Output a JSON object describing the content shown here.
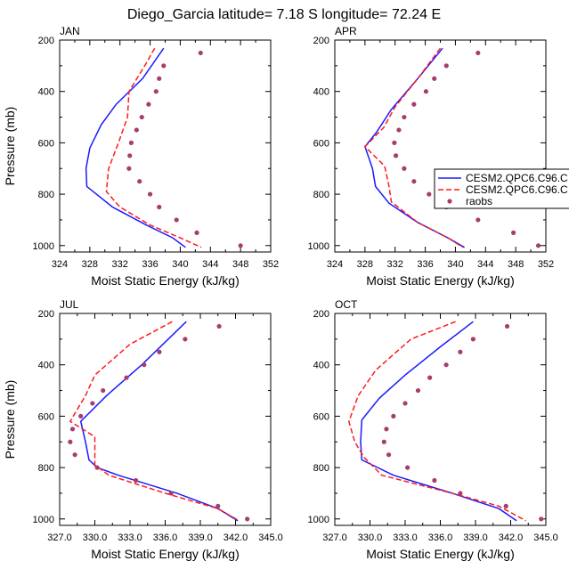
{
  "title": "Diego_Garcia  latitude= 7.18 S longitude= 72.24 E",
  "colors": {
    "series1": "#1a1aff",
    "series2": "#ff1a1a",
    "series3": "#a63d6d"
  },
  "legend": {
    "entries": [
      "CESM2.QPC6.C96.C",
      "CESM2.QPC6.C96.C",
      "raobs"
    ]
  },
  "chart_data": [
    {
      "type": "line",
      "panel": "JAN",
      "xlabel": "Moist Static Energy (kJ/kg)",
      "ylabel": "Pressure (mb)",
      "xlim": [
        324,
        352
      ],
      "ylim": [
        1025,
        200
      ],
      "xticks": [
        324,
        328,
        332,
        336,
        340,
        344,
        348,
        352
      ],
      "xtick_labels": [
        "324",
        "328",
        "332",
        "336",
        "340",
        "344",
        "348",
        "352"
      ],
      "yticks": [
        200,
        400,
        600,
        800,
        1000
      ],
      "ytick_labels": [
        "200",
        "400",
        "600",
        "800",
        "1000"
      ],
      "series": [
        {
          "name": "CESM2.QPC6.C96.C",
          "style": "solid",
          "points": [
            [
              337.8,
              232
            ],
            [
              335,
              350
            ],
            [
              331.5,
              450
            ],
            [
              329.5,
              530
            ],
            [
              328,
              620
            ],
            [
              327.5,
              700
            ],
            [
              327.6,
              770
            ],
            [
              331,
              850
            ],
            [
              335.5,
              920
            ],
            [
              339,
              970
            ],
            [
              340.7,
              1007
            ]
          ]
        },
        {
          "name": "CESM2.QPC6.C96.C",
          "style": "dashed",
          "points": [
            [
              336.6,
              232
            ],
            [
              335.3,
              300
            ],
            [
              333.2,
              400
            ],
            [
              333,
              500
            ],
            [
              331.8,
              600
            ],
            [
              330.5,
              700
            ],
            [
              330.2,
              790
            ],
            [
              332,
              850
            ],
            [
              336,
              920
            ],
            [
              340,
              970
            ],
            [
              342.8,
              1007
            ]
          ]
        },
        {
          "name": "raobs",
          "style": "dots",
          "points": [
            [
              342.7,
              250
            ],
            [
              337.8,
              300
            ],
            [
              337.2,
              350
            ],
            [
              336.8,
              400
            ],
            [
              335.8,
              450
            ],
            [
              334.9,
              500
            ],
            [
              334.2,
              550
            ],
            [
              333.5,
              600
            ],
            [
              333.3,
              650
            ],
            [
              333.2,
              700
            ],
            [
              334.6,
              750
            ],
            [
              336,
              800
            ],
            [
              337.2,
              850
            ],
            [
              339.5,
              900
            ],
            [
              342.2,
              950
            ],
            [
              348,
              1000
            ]
          ]
        }
      ]
    },
    {
      "type": "line",
      "panel": "APR",
      "xlabel": "Moist Static Energy (kJ/kg)",
      "ylabel": "",
      "xlim": [
        324,
        352
      ],
      "ylim": [
        1025,
        200
      ],
      "xticks": [
        324,
        328,
        332,
        336,
        340,
        344,
        348,
        352
      ],
      "xtick_labels": [
        "324",
        "328",
        "332",
        "336",
        "340",
        "344",
        "348",
        "352"
      ],
      "yticks": [
        200,
        400,
        600,
        800,
        1000
      ],
      "ytick_labels": [
        "200",
        "400",
        "600",
        "800",
        "1000"
      ],
      "series": [
        {
          "name": "CESM2.QPC6.C96.C",
          "style": "solid",
          "points": [
            [
              338.3,
              232
            ],
            [
              335,
              350
            ],
            [
              331.5,
              470
            ],
            [
              329.5,
              560
            ],
            [
              328,
              615
            ],
            [
              329,
              700
            ],
            [
              329.4,
              770
            ],
            [
              331.2,
              835
            ],
            [
              335,
              910
            ],
            [
              339,
              970
            ],
            [
              341.2,
              1007
            ]
          ]
        },
        {
          "name": "CESM2.QPC6.C96.C",
          "style": "dashed",
          "points": [
            [
              338,
              232
            ],
            [
              335,
              350
            ],
            [
              332,
              460
            ],
            [
              330.5,
              540
            ],
            [
              328,
              615
            ],
            [
              330.6,
              690
            ],
            [
              331.2,
              770
            ],
            [
              331.5,
              830
            ],
            [
              335,
              910
            ],
            [
              339,
              970
            ],
            [
              341,
              1007
            ]
          ]
        },
        {
          "name": "raobs",
          "style": "dots",
          "points": [
            [
              343,
              250
            ],
            [
              338.8,
              300
            ],
            [
              337.2,
              350
            ],
            [
              336.1,
              400
            ],
            [
              334.5,
              450
            ],
            [
              333.2,
              500
            ],
            [
              332.5,
              550
            ],
            [
              331.9,
              600
            ],
            [
              332.1,
              650
            ],
            [
              333.2,
              700
            ],
            [
              334.5,
              750
            ],
            [
              336.5,
              800
            ],
            [
              338.8,
              850
            ],
            [
              343,
              900
            ],
            [
              347.7,
              950
            ],
            [
              351,
              1000
            ]
          ]
        }
      ]
    },
    {
      "type": "line",
      "panel": "JUL",
      "xlabel": "Moist Static Energy (kJ/kg)",
      "ylabel": "Pressure (mb)",
      "xlim": [
        327,
        345
      ],
      "ylim": [
        1025,
        200
      ],
      "xticks": [
        327,
        330,
        333,
        336,
        339,
        342,
        345
      ],
      "xtick_labels": [
        "327.0",
        "330.0",
        "333.0",
        "336.0",
        "339.0",
        "342.0",
        "345.0"
      ],
      "yticks": [
        200,
        400,
        600,
        800,
        1000
      ],
      "ytick_labels": [
        "200",
        "400",
        "600",
        "800",
        "1000"
      ],
      "series": [
        {
          "name": "CESM2.QPC6.C96.C",
          "style": "solid",
          "points": [
            [
              337.8,
              232
            ],
            [
              334,
              400
            ],
            [
              331,
              520
            ],
            [
              328.8,
              620
            ],
            [
              329.2,
              700
            ],
            [
              329.5,
              770
            ],
            [
              330.2,
              800
            ],
            [
              332,
              830
            ],
            [
              337,
              900
            ],
            [
              340.5,
              960
            ],
            [
              342.2,
              1007
            ]
          ]
        },
        {
          "name": "CESM2.QPC6.C96.C",
          "style": "dashed",
          "points": [
            [
              336.6,
              232
            ],
            [
              333,
              320
            ],
            [
              330,
              440
            ],
            [
              329.2,
              520
            ],
            [
              327.9,
              620
            ],
            [
              330,
              680
            ],
            [
              330,
              790
            ],
            [
              331.2,
              830
            ],
            [
              336,
              900
            ],
            [
              340.5,
              960
            ],
            [
              342.3,
              1007
            ]
          ]
        },
        {
          "name": "raobs",
          "style": "dots",
          "points": [
            [
              340.6,
              250
            ],
            [
              337.7,
              300
            ],
            [
              335.5,
              350
            ],
            [
              334.2,
              400
            ],
            [
              332.7,
              450
            ],
            [
              330.7,
              500
            ],
            [
              329.8,
              550
            ],
            [
              328.8,
              600
            ],
            [
              328.1,
              650
            ],
            [
              327.9,
              700
            ],
            [
              328.3,
              750
            ],
            [
              330.2,
              800
            ],
            [
              333.5,
              850
            ],
            [
              336.5,
              900
            ],
            [
              340.5,
              950
            ],
            [
              343,
              1000
            ]
          ]
        }
      ]
    },
    {
      "type": "line",
      "panel": "OCT",
      "xlabel": "Moist Static Energy (kJ/kg)",
      "ylabel": "",
      "xlim": [
        327,
        345
      ],
      "ylim": [
        1025,
        200
      ],
      "xticks": [
        327,
        330,
        333,
        336,
        339,
        342,
        345
      ],
      "xtick_labels": [
        "327.0",
        "330.0",
        "333.0",
        "336.0",
        "339.0",
        "342.0",
        "345.0"
      ],
      "yticks": [
        200,
        400,
        600,
        800,
        1000
      ],
      "ytick_labels": [
        "200",
        "400",
        "600",
        "800",
        "1000"
      ],
      "series": [
        {
          "name": "CESM2.QPC6.C96.C",
          "style": "solid",
          "points": [
            [
              338.8,
              232
            ],
            [
              336,
              330
            ],
            [
              333,
              440
            ],
            [
              330.8,
              530
            ],
            [
              329.3,
              615
            ],
            [
              329.2,
              700
            ],
            [
              329.3,
              770
            ],
            [
              332,
              830
            ],
            [
              337,
              900
            ],
            [
              341,
              960
            ],
            [
              342.5,
              1007
            ]
          ]
        },
        {
          "name": "CESM2.QPC6.C96.C",
          "style": "dashed",
          "points": [
            [
              337.3,
              232
            ],
            [
              333.5,
              300
            ],
            [
              330.5,
              420
            ],
            [
              329,
              520
            ],
            [
              328.2,
              620
            ],
            [
              328.7,
              700
            ],
            [
              329.5,
              760
            ],
            [
              331,
              830
            ],
            [
              337,
              900
            ],
            [
              341,
              950
            ],
            [
              343.3,
              1007
            ]
          ]
        },
        {
          "name": "raobs",
          "style": "dots",
          "points": [
            [
              341.7,
              250
            ],
            [
              338.8,
              300
            ],
            [
              337.7,
              350
            ],
            [
              336.5,
              400
            ],
            [
              335.1,
              450
            ],
            [
              334.1,
              500
            ],
            [
              333,
              550
            ],
            [
              332,
              600
            ],
            [
              331.4,
              650
            ],
            [
              331.2,
              700
            ],
            [
              331.6,
              750
            ],
            [
              333.2,
              800
            ],
            [
              335.5,
              850
            ],
            [
              337.7,
              900
            ],
            [
              341.6,
              950
            ],
            [
              344.6,
              1000
            ]
          ]
        }
      ]
    }
  ]
}
